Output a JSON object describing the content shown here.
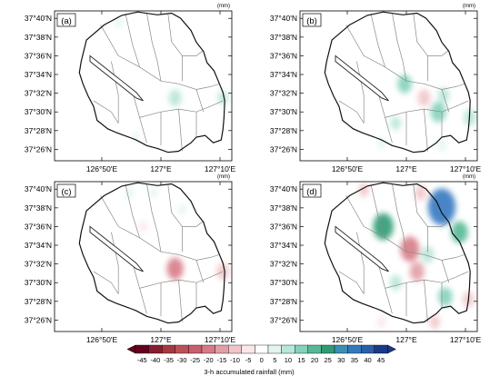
{
  "chart_data": {
    "type": "heatmap",
    "unit_label": "(mm)",
    "y_tick_labels": [
      "37°40'N",
      "37°38'N",
      "37°36'N",
      "37°34'N",
      "37°32'N",
      "37°30'N",
      "37°28'N",
      "37°26'N"
    ],
    "x_tick_labels": [
      "126°50'E",
      "127°E",
      "127°10'E"
    ],
    "colorbar": {
      "label": "3-h accumulated rainfall (mm)",
      "ticks": [
        "-45",
        "-40",
        "-35",
        "-30",
        "-25",
        "-20",
        "-15",
        "-10",
        "-5",
        "0",
        "5",
        "10",
        "15",
        "20",
        "25",
        "30",
        "35",
        "40",
        "45"
      ],
      "colors": [
        "#67001f",
        "#8a1c2f",
        "#a8383f",
        "#bd5056",
        "#c95e6c",
        "#d67b86",
        "#e29ea6",
        "#f0c5ca",
        "#f9e7e9",
        "#ffffff",
        "#e3f5ef",
        "#b9e6d8",
        "#83d1ba",
        "#55b994",
        "#2f9b72",
        "#3c8fb0",
        "#3478c0",
        "#2c5ea8",
        "#1b3a85"
      ]
    },
    "panels": [
      {
        "label": "(a)",
        "cells": [
          {
            "lon": 127.04,
            "lat": 37.525,
            "value": 12
          },
          {
            "lon": 127.175,
            "lat": 37.525,
            "value": 8
          },
          {
            "lon": 126.88,
            "lat": 37.66,
            "value": 5
          },
          {
            "lon": 126.93,
            "lat": 37.455,
            "value": 3
          }
        ]
      },
      {
        "label": "(b)",
        "cells": [
          {
            "lon": 126.995,
            "lat": 37.55,
            "value": 14
          },
          {
            "lon": 127.05,
            "lat": 37.525,
            "value": -12
          },
          {
            "lon": 127.09,
            "lat": 37.5,
            "value": 16
          },
          {
            "lon": 127.105,
            "lat": 37.53,
            "value": 10
          },
          {
            "lon": 126.97,
            "lat": 37.48,
            "value": 8
          },
          {
            "lon": 127.18,
            "lat": 37.49,
            "value": 12
          },
          {
            "lon": 126.93,
            "lat": 37.445,
            "value": 5
          },
          {
            "lon": 127.1,
            "lat": 37.44,
            "value": 6
          }
        ]
      },
      {
        "label": "(c)",
        "cells": [
          {
            "lon": 127.04,
            "lat": 37.525,
            "value": -18
          },
          {
            "lon": 127.175,
            "lat": 37.52,
            "value": -12
          },
          {
            "lon": 126.91,
            "lat": 37.66,
            "value": 5
          },
          {
            "lon": 126.98,
            "lat": 37.66,
            "value": 4
          },
          {
            "lon": 126.95,
            "lat": 37.6,
            "value": -5
          },
          {
            "lon": 127.06,
            "lat": 37.63,
            "value": 4
          }
        ]
      },
      {
        "label": "(d)",
        "cells": [
          {
            "lon": 126.935,
            "lat": 37.6,
            "value": 24
          },
          {
            "lon": 127.1,
            "lat": 37.635,
            "value": 36
          },
          {
            "lon": 127.15,
            "lat": 37.59,
            "value": 18
          },
          {
            "lon": 127.01,
            "lat": 37.56,
            "value": -22
          },
          {
            "lon": 127.03,
            "lat": 37.52,
            "value": -15
          },
          {
            "lon": 127.06,
            "lat": 37.55,
            "value": 12
          },
          {
            "lon": 127.04,
            "lat": 37.66,
            "value": -10
          },
          {
            "lon": 126.88,
            "lat": 37.665,
            "value": -8
          },
          {
            "lon": 127.11,
            "lat": 37.475,
            "value": 14
          },
          {
            "lon": 127.175,
            "lat": 37.47,
            "value": -10
          },
          {
            "lon": 127.08,
            "lat": 37.43,
            "value": -8
          },
          {
            "lon": 126.93,
            "lat": 37.43,
            "value": -6
          },
          {
            "lon": 126.97,
            "lat": 37.5,
            "value": 10
          }
        ]
      }
    ]
  }
}
